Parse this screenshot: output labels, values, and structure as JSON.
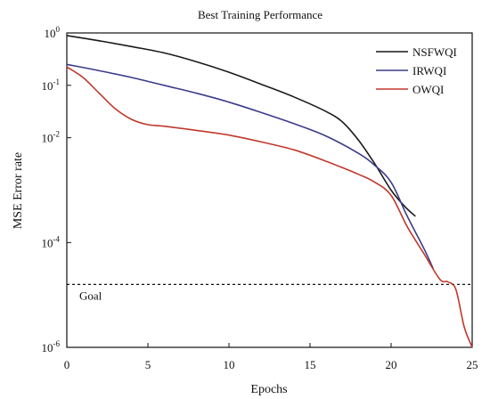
{
  "chart_data": {
    "type": "line",
    "title": "Best Training Performance",
    "xlabel": "Epochs",
    "ylabel": "MSE Error rate",
    "xlim": [
      0,
      25
    ],
    "ylim_log10": [
      -6,
      0
    ],
    "y_scale": "log",
    "grid": false,
    "legend_position": "top-right",
    "x_ticks": [
      0,
      5,
      10,
      15,
      20,
      25
    ],
    "x_tick_labels": [
      "0",
      "5",
      "10",
      "15",
      "20",
      "25"
    ],
    "y_ticks_log10": [
      0,
      -1,
      -2,
      -4,
      -6
    ],
    "y_tick_labels": [
      {
        "base": "10",
        "exp": "0"
      },
      {
        "base": "10",
        "exp": "-1"
      },
      {
        "base": "10",
        "exp": "-2"
      },
      {
        "base": "10",
        "exp": "-4"
      },
      {
        "base": "10",
        "exp": "-6"
      }
    ],
    "goal": {
      "label": "Goal",
      "log10_value": -4.8
    },
    "series": [
      {
        "name": "NSFWQI",
        "color": "#1a1a1a",
        "x": [
          0,
          2,
          4,
          6,
          8,
          10,
          12,
          14,
          16,
          17,
          18,
          19,
          20,
          20.8,
          21.5
        ],
        "log10": [
          -0.05,
          -0.15,
          -0.26,
          -0.38,
          -0.55,
          -0.75,
          -0.98,
          -1.22,
          -1.5,
          -1.7,
          -2.05,
          -2.5,
          -3.0,
          -3.3,
          -3.5
        ]
      },
      {
        "name": "IRWQI",
        "color": "#3b3b8c",
        "x": [
          0,
          2,
          4,
          6,
          8,
          10,
          12,
          14,
          16,
          18,
          19,
          20,
          21,
          22,
          22.6
        ],
        "log10": [
          -0.6,
          -0.72,
          -0.85,
          -1.0,
          -1.15,
          -1.32,
          -1.52,
          -1.73,
          -1.97,
          -2.3,
          -2.53,
          -2.85,
          -3.5,
          -4.1,
          -4.5
        ]
      },
      {
        "name": "OWQI",
        "color": "#c0392b",
        "x": [
          0,
          1,
          2,
          3,
          4,
          5,
          6,
          8,
          10,
          12,
          14,
          16,
          18,
          19,
          20,
          21,
          22,
          23,
          23.5,
          24,
          24.5,
          25
        ],
        "log10": [
          -0.65,
          -0.85,
          -1.15,
          -1.45,
          -1.65,
          -1.75,
          -1.78,
          -1.86,
          -1.95,
          -2.08,
          -2.23,
          -2.45,
          -2.7,
          -2.85,
          -3.1,
          -3.7,
          -4.2,
          -4.7,
          -4.75,
          -4.9,
          -5.6,
          -6.0
        ]
      }
    ]
  }
}
